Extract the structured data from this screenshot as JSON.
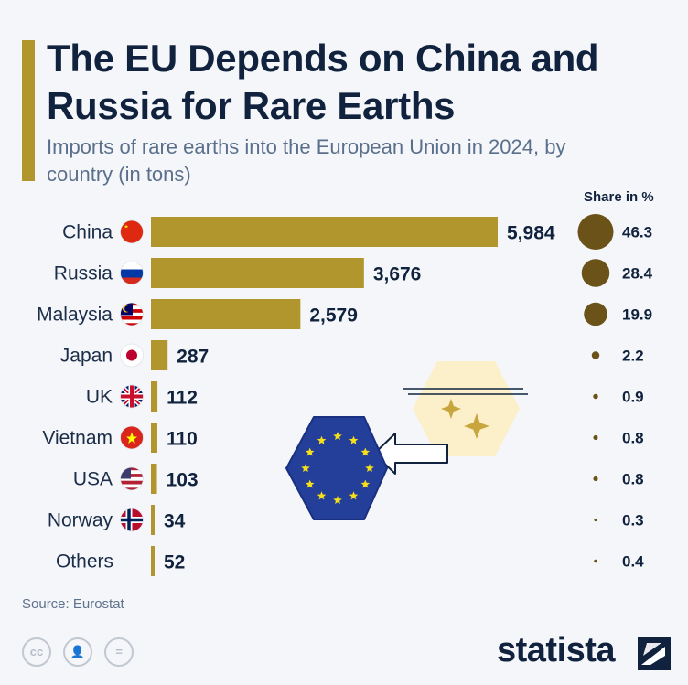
{
  "header": {
    "title": "The EU Depends on China and Russia for Rare Earths",
    "subtitle": "Imports of rare earths into the European Union in 2024, by country (in tons)"
  },
  "share_header": "Share in %",
  "source": "Source: Eurostat",
  "brand": "statista",
  "license_icons": [
    "creative-commons-icon",
    "attribution-icon",
    "no-derivatives-icon"
  ],
  "license_glyphs": {
    "cc": "cc",
    "by": "👤",
    "nd": "="
  },
  "colors": {
    "bar": "#b1952d",
    "bubble": "#6b5218",
    "text": "#10223d",
    "accent": "#b1952d",
    "eu_blue": "#233f9a",
    "eu_star": "#f7e019",
    "badge_bg": "#fbf0c9",
    "sparkle": "#c9a63d"
  },
  "chart_data": {
    "type": "bar",
    "orientation": "horizontal",
    "categories": [
      "China",
      "Russia",
      "Malaysia",
      "Japan",
      "UK",
      "Vietnam",
      "USA",
      "Norway",
      "Others"
    ],
    "values": [
      5984,
      3676,
      2579,
      287,
      112,
      110,
      103,
      34,
      52
    ],
    "value_labels": [
      "5,984",
      "3,676",
      "2,579",
      "287",
      "112",
      "110",
      "103",
      "34",
      "52"
    ],
    "share": [
      46.3,
      28.4,
      19.9,
      2.2,
      0.9,
      0.8,
      0.8,
      0.3,
      0.4
    ],
    "share_labels": [
      "46.3",
      "28.4",
      "19.9",
      "2.2",
      "0.9",
      "0.8",
      "0.8",
      "0.3",
      "0.4"
    ],
    "flags": [
      "china-flag-icon",
      "russia-flag-icon",
      "malaysia-flag-icon",
      "japan-flag-icon",
      "uk-flag-icon",
      "vietnam-flag-icon",
      "usa-flag-icon",
      "norway-flag-icon",
      ""
    ],
    "xlim": [
      0,
      5984
    ]
  }
}
